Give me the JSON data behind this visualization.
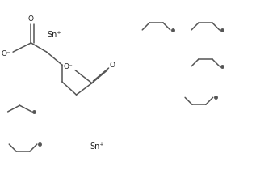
{
  "bg_color": "#ffffff",
  "line_color": "#555555",
  "text_color": "#222222",
  "linewidth": 1.1,
  "dot_size": 2.5,
  "xlim": [
    0,
    10
  ],
  "ylim": [
    0,
    7.2
  ],
  "figsize": [
    3.22,
    2.31
  ],
  "dpi": 100
}
